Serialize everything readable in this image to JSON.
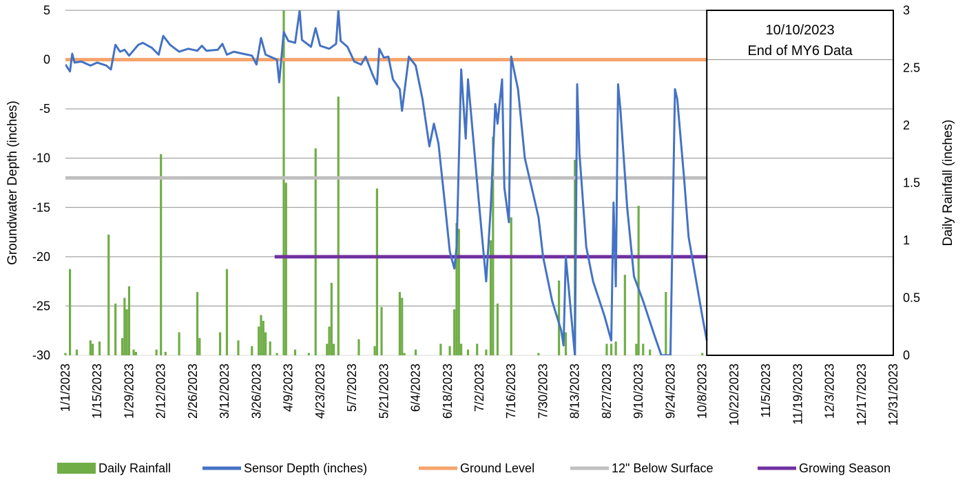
{
  "chart_data": {
    "type": "line",
    "title": "",
    "ylabel": "Groundwater Depth (inches)",
    "y2label": "Daily Rainfall (inches)",
    "ylim": [
      -30,
      5
    ],
    "y2lim": [
      0,
      3
    ],
    "yticks": [
      "5",
      "0",
      "-5",
      "-10",
      "-15",
      "-20",
      "-25",
      "-30"
    ],
    "y2ticks": [
      "3",
      "2.5",
      "2",
      "1.5",
      "1",
      "0.5",
      "0"
    ],
    "xlim": [
      "1/1/2023",
      "12/31/2023"
    ],
    "xticks": [
      "1/1/2023",
      "1/15/2023",
      "1/29/2023",
      "2/12/2023",
      "2/26/2023",
      "3/12/2023",
      "3/26/2023",
      "4/9/2023",
      "4/23/2023",
      "5/7/2023",
      "5/21/2023",
      "6/4/2023",
      "6/18/2023",
      "7/2/2023",
      "7/16/2023",
      "7/30/2023",
      "8/13/2023",
      "8/27/2023",
      "9/10/2023",
      "9/24/2023",
      "10/8/2023",
      "10/22/2023",
      "11/5/2023",
      "11/19/2023",
      "12/3/2023",
      "12/17/2023",
      "12/31/2023"
    ],
    "grid": "horizontal",
    "legend_position": "bottom",
    "annotation": {
      "line1": "10/10/2023",
      "line2": "End of MY6 Data"
    },
    "colors": {
      "rainfall": "#70ad47",
      "sensor": "#4472c4",
      "ground": "#f4a46b",
      "below12": "#bfbfbf",
      "growing": "#7030a0",
      "grid": "#8c8c8c"
    },
    "legend": [
      {
        "key": "rainfall",
        "label": "Daily Rainfall",
        "kind": "bar"
      },
      {
        "key": "sensor",
        "label": "Sensor Depth (inches)",
        "kind": "line"
      },
      {
        "key": "ground",
        "label": "Ground Level",
        "kind": "line"
      },
      {
        "key": "below12",
        "label": "12\" Below Surface",
        "kind": "line"
      },
      {
        "key": "growing",
        "label": "Growing Season",
        "kind": "line"
      }
    ],
    "reference_lines": [
      {
        "key": "ground",
        "name": "Ground Level",
        "value": 0,
        "start": "1/1/2023",
        "end": "10/10/2023"
      },
      {
        "key": "below12",
        "name": "12\" Below Surface",
        "value": -12,
        "start": "1/1/2023",
        "end": "10/10/2023"
      },
      {
        "key": "growing",
        "name": "Growing Season",
        "value": -20,
        "start": "4/3/2023",
        "end": "10/10/2023"
      }
    ],
    "series": [
      {
        "name": "Sensor Depth (inches)",
        "axis": "left",
        "points": [
          [
            "1/1/2023",
            -0.5
          ],
          [
            "1/3/2023",
            -1.2
          ],
          [
            "1/4/2023",
            0.6
          ],
          [
            "1/5/2023",
            -0.3
          ],
          [
            "1/8/2023",
            -0.2
          ],
          [
            "1/12/2023",
            -0.6
          ],
          [
            "1/15/2023",
            -0.3
          ],
          [
            "1/19/2023",
            -0.6
          ],
          [
            "1/21/2023",
            -1.0
          ],
          [
            "1/23/2023",
            1.5
          ],
          [
            "1/25/2023",
            0.8
          ],
          [
            "1/27/2023",
            1.0
          ],
          [
            "1/29/2023",
            0.4
          ],
          [
            "2/2/2023",
            1.5
          ],
          [
            "2/4/2023",
            1.7
          ],
          [
            "2/8/2023",
            1.2
          ],
          [
            "2/11/2023",
            0.5
          ],
          [
            "2/13/2023",
            2.4
          ],
          [
            "2/16/2023",
            1.5
          ],
          [
            "2/20/2023",
            0.8
          ],
          [
            "2/24/2023",
            1.1
          ],
          [
            "2/28/2023",
            0.9
          ],
          [
            "3/2/2023",
            1.4
          ],
          [
            "3/4/2023",
            0.9
          ],
          [
            "3/9/2023",
            1.0
          ],
          [
            "3/11/2023",
            1.6
          ],
          [
            "3/13/2023",
            0.5
          ],
          [
            "3/16/2023",
            0.8
          ],
          [
            "3/20/2023",
            0.6
          ],
          [
            "3/24/2023",
            0.4
          ],
          [
            "3/26/2023",
            -0.5
          ],
          [
            "3/28/2023",
            2.2
          ],
          [
            "3/30/2023",
            0.5
          ],
          [
            "4/1/2023",
            0.3
          ],
          [
            "4/4/2023",
            0.0
          ],
          [
            "4/5/2023",
            -2.3
          ],
          [
            "4/7/2023",
            2.8
          ],
          [
            "4/9/2023",
            1.9
          ],
          [
            "4/12/2023",
            1.7
          ],
          [
            "4/14/2023",
            5.0
          ],
          [
            "4/15/2023",
            2.0
          ],
          [
            "4/19/2023",
            1.3
          ],
          [
            "4/21/2023",
            3.2
          ],
          [
            "4/23/2023",
            1.4
          ],
          [
            "4/27/2023",
            1.1
          ],
          [
            "4/30/2023",
            1.6
          ],
          [
            "5/1/2023",
            5.0
          ],
          [
            "5/2/2023",
            1.9
          ],
          [
            "5/5/2023",
            1.3
          ],
          [
            "5/8/2023",
            -0.2
          ],
          [
            "5/11/2023",
            -0.5
          ],
          [
            "5/13/2023",
            0.3
          ],
          [
            "5/16/2023",
            -1.5
          ],
          [
            "5/18/2023",
            -2.5
          ],
          [
            "5/19/2023",
            1.1
          ],
          [
            "5/21/2023",
            0.2
          ],
          [
            "5/23/2023",
            0.3
          ],
          [
            "5/25/2023",
            -2.0
          ],
          [
            "5/28/2023",
            -3.0
          ],
          [
            "5/29/2023",
            -5.2
          ],
          [
            "6/1/2023",
            0.3
          ],
          [
            "6/4/2023",
            -0.6
          ],
          [
            "6/7/2023",
            -4.0
          ],
          [
            "6/10/2023",
            -8.8
          ],
          [
            "6/12/2023",
            -6.5
          ],
          [
            "6/14/2023",
            -8.5
          ],
          [
            "6/17/2023",
            -15.0
          ],
          [
            "6/19/2023",
            -19.5
          ],
          [
            "6/21/2023",
            -21.2
          ],
          [
            "6/22/2023",
            -19.0
          ],
          [
            "6/24/2023",
            -1.0
          ],
          [
            "6/26/2023",
            -8.0
          ],
          [
            "6/27/2023",
            -2.0
          ],
          [
            "7/2/2023",
            -15.0
          ],
          [
            "7/5/2023",
            -22.5
          ],
          [
            "7/7/2023",
            -15.0
          ],
          [
            "7/9/2023",
            -4.5
          ],
          [
            "7/10/2023",
            -6.5
          ],
          [
            "7/12/2023",
            -2.0
          ],
          [
            "7/13/2023",
            -13.0
          ],
          [
            "7/15/2023",
            -16.5
          ],
          [
            "7/16/2023",
            0.3
          ],
          [
            "7/19/2023",
            -3.0
          ],
          [
            "7/22/2023",
            -10.0
          ],
          [
            "7/25/2023",
            -13.0
          ],
          [
            "7/28/2023",
            -16.0
          ],
          [
            "7/30/2023",
            -20.0
          ],
          [
            "8/3/2023",
            -24.5
          ],
          [
            "8/7/2023",
            -27.5
          ],
          [
            "8/8/2023",
            -29.0
          ],
          [
            "8/9/2023",
            -20.0
          ],
          [
            "8/13/2023",
            -30.0
          ],
          [
            "8/14/2023",
            -2.5
          ],
          [
            "8/15/2023",
            -9.5
          ],
          [
            "8/18/2023",
            -19.0
          ],
          [
            "8/21/2023",
            -22.5
          ],
          [
            "8/26/2023",
            -26.0
          ],
          [
            "8/29/2023",
            -28.5
          ],
          [
            "8/30/2023",
            -14.5
          ],
          [
            "8/31/2023",
            -23.0
          ],
          [
            "9/1/2023",
            -2.5
          ],
          [
            "9/2/2023",
            -5.0
          ],
          [
            "9/5/2023",
            -15.0
          ],
          [
            "9/8/2023",
            -22.0
          ],
          [
            "9/12/2023",
            -24.5
          ],
          [
            "9/17/2023",
            -28.0
          ],
          [
            "9/20/2023",
            -30.0
          ],
          [
            "9/24/2023",
            -30.0
          ],
          [
            "9/26/2023",
            -3.0
          ],
          [
            "9/27/2023",
            -4.0
          ],
          [
            "9/30/2023",
            -12.0
          ],
          [
            "10/2/2023",
            -18.0
          ],
          [
            "10/5/2023",
            -22.0
          ],
          [
            "10/8/2023",
            -26.0
          ],
          [
            "10/10/2023",
            -28.5
          ]
        ]
      },
      {
        "name": "Daily Rainfall",
        "axis": "right",
        "points": [
          [
            "1/1/2023",
            0.02
          ],
          [
            "1/3/2023",
            0.75
          ],
          [
            "1/6/2023",
            0.05
          ],
          [
            "1/12/2023",
            0.13
          ],
          [
            "1/13/2023",
            0.1
          ],
          [
            "1/16/2023",
            0.12
          ],
          [
            "1/20/2023",
            1.05
          ],
          [
            "1/23/2023",
            0.45
          ],
          [
            "1/26/2023",
            0.15
          ],
          [
            "1/27/2023",
            0.5
          ],
          [
            "1/28/2023",
            0.4
          ],
          [
            "1/29/2023",
            0.6
          ],
          [
            "1/31/2023",
            0.05
          ],
          [
            "2/1/2023",
            0.03
          ],
          [
            "2/10/2023",
            0.05
          ],
          [
            "2/12/2023",
            1.75
          ],
          [
            "2/14/2023",
            0.03
          ],
          [
            "2/20/2023",
            0.2
          ],
          [
            "2/28/2023",
            0.55
          ],
          [
            "3/1/2023",
            0.15
          ],
          [
            "3/10/2023",
            0.2
          ],
          [
            "3/13/2023",
            0.75
          ],
          [
            "3/18/2023",
            0.13
          ],
          [
            "3/24/2023",
            0.08
          ],
          [
            "3/27/2023",
            0.25
          ],
          [
            "3/28/2023",
            0.35
          ],
          [
            "3/29/2023",
            0.3
          ],
          [
            "3/30/2023",
            0.2
          ],
          [
            "4/1/2023",
            0.12
          ],
          [
            "4/4/2023",
            0.02
          ],
          [
            "4/7/2023",
            3.0
          ],
          [
            "4/8/2023",
            1.5
          ],
          [
            "4/12/2023",
            0.05
          ],
          [
            "4/18/2023",
            0.02
          ],
          [
            "4/21/2023",
            1.8
          ],
          [
            "4/26/2023",
            0.1
          ],
          [
            "4/27/2023",
            0.25
          ],
          [
            "4/28/2023",
            0.63
          ],
          [
            "4/29/2023",
            0.1
          ],
          [
            "5/1/2023",
            2.25
          ],
          [
            "5/10/2023",
            0.14
          ],
          [
            "5/17/2023",
            0.08
          ],
          [
            "5/18/2023",
            1.45
          ],
          [
            "5/20/2023",
            0.42
          ],
          [
            "5/28/2023",
            0.55
          ],
          [
            "5/29/2023",
            0.5
          ],
          [
            "5/30/2023",
            0.02
          ],
          [
            "6/4/2023",
            0.05
          ],
          [
            "6/15/2023",
            0.1
          ],
          [
            "6/19/2023",
            0.08
          ],
          [
            "6/21/2023",
            0.4
          ],
          [
            "6/22/2023",
            1.15
          ],
          [
            "6/23/2023",
            1.1
          ],
          [
            "6/24/2023",
            0.1
          ],
          [
            "6/27/2023",
            0.05
          ],
          [
            "7/1/2023",
            0.1
          ],
          [
            "7/5/2023",
            0.05
          ],
          [
            "7/7/2023",
            1.0
          ],
          [
            "7/8/2023",
            1.9
          ],
          [
            "7/10/2023",
            0.45
          ],
          [
            "7/16/2023",
            1.2
          ],
          [
            "7/28/2023",
            0.02
          ],
          [
            "8/6/2023",
            0.65
          ],
          [
            "8/9/2023",
            0.2
          ],
          [
            "8/13/2023",
            1.7
          ],
          [
            "8/27/2023",
            0.1
          ],
          [
            "8/29/2023",
            0.1
          ],
          [
            "8/31/2023",
            0.12
          ],
          [
            "9/4/2023",
            0.7
          ],
          [
            "9/9/2023",
            0.1
          ],
          [
            "9/10/2023",
            1.3
          ],
          [
            "9/12/2023",
            0.1
          ],
          [
            "9/15/2023",
            0.05
          ],
          [
            "9/22/2023",
            0.55
          ],
          [
            "9/24/2023",
            0.02
          ],
          [
            "10/8/2023",
            0.02
          ]
        ]
      }
    ]
  }
}
